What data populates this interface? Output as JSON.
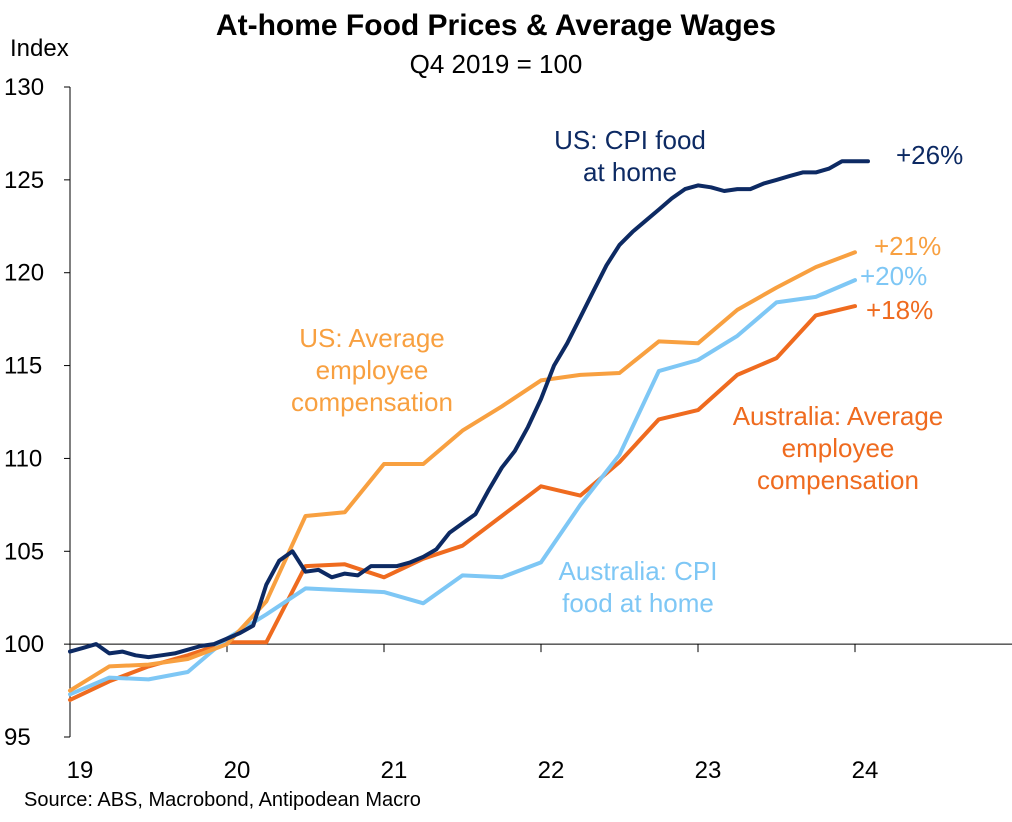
{
  "chart_data": {
    "type": "line",
    "title": "At-home Food Prices & Average Wages",
    "subtitle": "Q4 2019 = 100",
    "ylabel": "Index",
    "xlabel": "",
    "source": "Source: ABS, Macrobond, Antipodean Macro",
    "xlim": [
      2019.0,
      2025.0
    ],
    "ylim": [
      95,
      130
    ],
    "y_ticks": [
      95,
      100,
      105,
      110,
      115,
      120,
      125,
      130
    ],
    "x_ticks": [
      {
        "value": 2019.0,
        "label": "19"
      },
      {
        "value": 2020.0,
        "label": "20"
      },
      {
        "value": 2021.0,
        "label": "21"
      },
      {
        "value": 2022.0,
        "label": "22"
      },
      {
        "value": 2023.0,
        "label": "23"
      },
      {
        "value": 2024.0,
        "label": "24"
      }
    ],
    "grid": false,
    "reference_line": 100,
    "series": [
      {
        "name": "US: CPI food at home",
        "label_lines": [
          "US: CPI food",
          "at home"
        ],
        "color": "#0d2a63",
        "end_label": "+26%",
        "x": [
          2019.0,
          2019.083,
          2019.167,
          2019.25,
          2019.333,
          2019.417,
          2019.5,
          2019.583,
          2019.667,
          2019.75,
          2019.833,
          2019.917,
          2020.0,
          2020.083,
          2020.167,
          2020.25,
          2020.333,
          2020.417,
          2020.5,
          2020.583,
          2020.667,
          2020.75,
          2020.833,
          2020.917,
          2021.0,
          2021.083,
          2021.167,
          2021.25,
          2021.333,
          2021.417,
          2021.5,
          2021.583,
          2021.667,
          2021.75,
          2021.833,
          2021.917,
          2022.0,
          2022.083,
          2022.167,
          2022.25,
          2022.333,
          2022.417,
          2022.5,
          2022.583,
          2022.667,
          2022.75,
          2022.833,
          2022.917,
          2023.0,
          2023.083,
          2023.167,
          2023.25,
          2023.333,
          2023.417,
          2023.5,
          2023.583,
          2023.667,
          2023.75,
          2023.833,
          2023.917,
          2024.0,
          2024.083
        ],
        "values": [
          99.6,
          99.8,
          100.0,
          99.5,
          99.6,
          99.4,
          99.3,
          99.4,
          99.5,
          99.7,
          99.9,
          100.0,
          100.3,
          100.6,
          101.0,
          103.2,
          104.5,
          105.0,
          103.9,
          104.0,
          103.6,
          103.8,
          103.7,
          104.2,
          104.2,
          104.2,
          104.4,
          104.7,
          105.1,
          106.0,
          106.5,
          107.0,
          108.3,
          109.5,
          110.4,
          111.7,
          113.2,
          115.0,
          116.2,
          117.6,
          119.0,
          120.4,
          121.5,
          122.2,
          122.8,
          123.4,
          124.0,
          124.5,
          124.7,
          124.6,
          124.4,
          124.5,
          124.5,
          124.8,
          125.0,
          125.2,
          125.4,
          125.4,
          125.6,
          126.0,
          126.0,
          126.0
        ]
      },
      {
        "name": "US: Average employee compensation",
        "label_lines": [
          "US: Average",
          "employee",
          "compensation"
        ],
        "color": "#f8a040",
        "end_label": "+21%",
        "x": [
          2019.0,
          2019.25,
          2019.5,
          2019.75,
          2020.0,
          2020.25,
          2020.5,
          2020.75,
          2021.0,
          2021.25,
          2021.5,
          2021.75,
          2022.0,
          2022.25,
          2022.5,
          2022.75,
          2023.0,
          2023.25,
          2023.5,
          2023.75,
          2024.0
        ],
        "values": [
          97.5,
          98.8,
          98.9,
          99.2,
          100.0,
          102.3,
          106.9,
          107.1,
          109.7,
          109.7,
          111.5,
          112.8,
          114.2,
          114.5,
          114.6,
          116.3,
          116.2,
          118.0,
          119.2,
          120.3,
          121.1
        ]
      },
      {
        "name": "Australia: CPI food at home",
        "label_lines": [
          "Australia: CPI",
          "food at home"
        ],
        "color": "#7ec7f5",
        "end_label": "+20%",
        "x": [
          2019.0,
          2019.25,
          2019.5,
          2019.75,
          2020.0,
          2020.25,
          2020.5,
          2020.75,
          2021.0,
          2021.25,
          2021.5,
          2021.75,
          2022.0,
          2022.25,
          2022.5,
          2022.75,
          2023.0,
          2023.25,
          2023.5,
          2023.75,
          2024.0
        ],
        "values": [
          97.3,
          98.2,
          98.1,
          98.5,
          100.3,
          101.6,
          103.0,
          102.9,
          102.8,
          102.2,
          103.7,
          103.6,
          104.4,
          107.5,
          110.2,
          114.7,
          115.3,
          116.6,
          118.4,
          118.7,
          119.6
        ]
      },
      {
        "name": "Australia: Average employee compensation",
        "label_lines": [
          "Australia: Average",
          "employee",
          "compensation"
        ],
        "color": "#ef6b1f",
        "end_label": "+18%",
        "x": [
          2019.0,
          2019.25,
          2019.5,
          2019.75,
          2020.0,
          2020.25,
          2020.5,
          2020.75,
          2021.0,
          2021.25,
          2021.5,
          2021.75,
          2022.0,
          2022.25,
          2022.5,
          2022.75,
          2023.0,
          2023.25,
          2023.5,
          2023.75,
          2024.0
        ],
        "values": [
          97.0,
          98.0,
          98.8,
          99.4,
          100.1,
          100.1,
          104.2,
          104.3,
          103.6,
          104.6,
          105.3,
          106.9,
          108.5,
          108.0,
          109.8,
          112.1,
          112.6,
          114.5,
          115.4,
          117.7,
          118.2
        ]
      }
    ]
  }
}
